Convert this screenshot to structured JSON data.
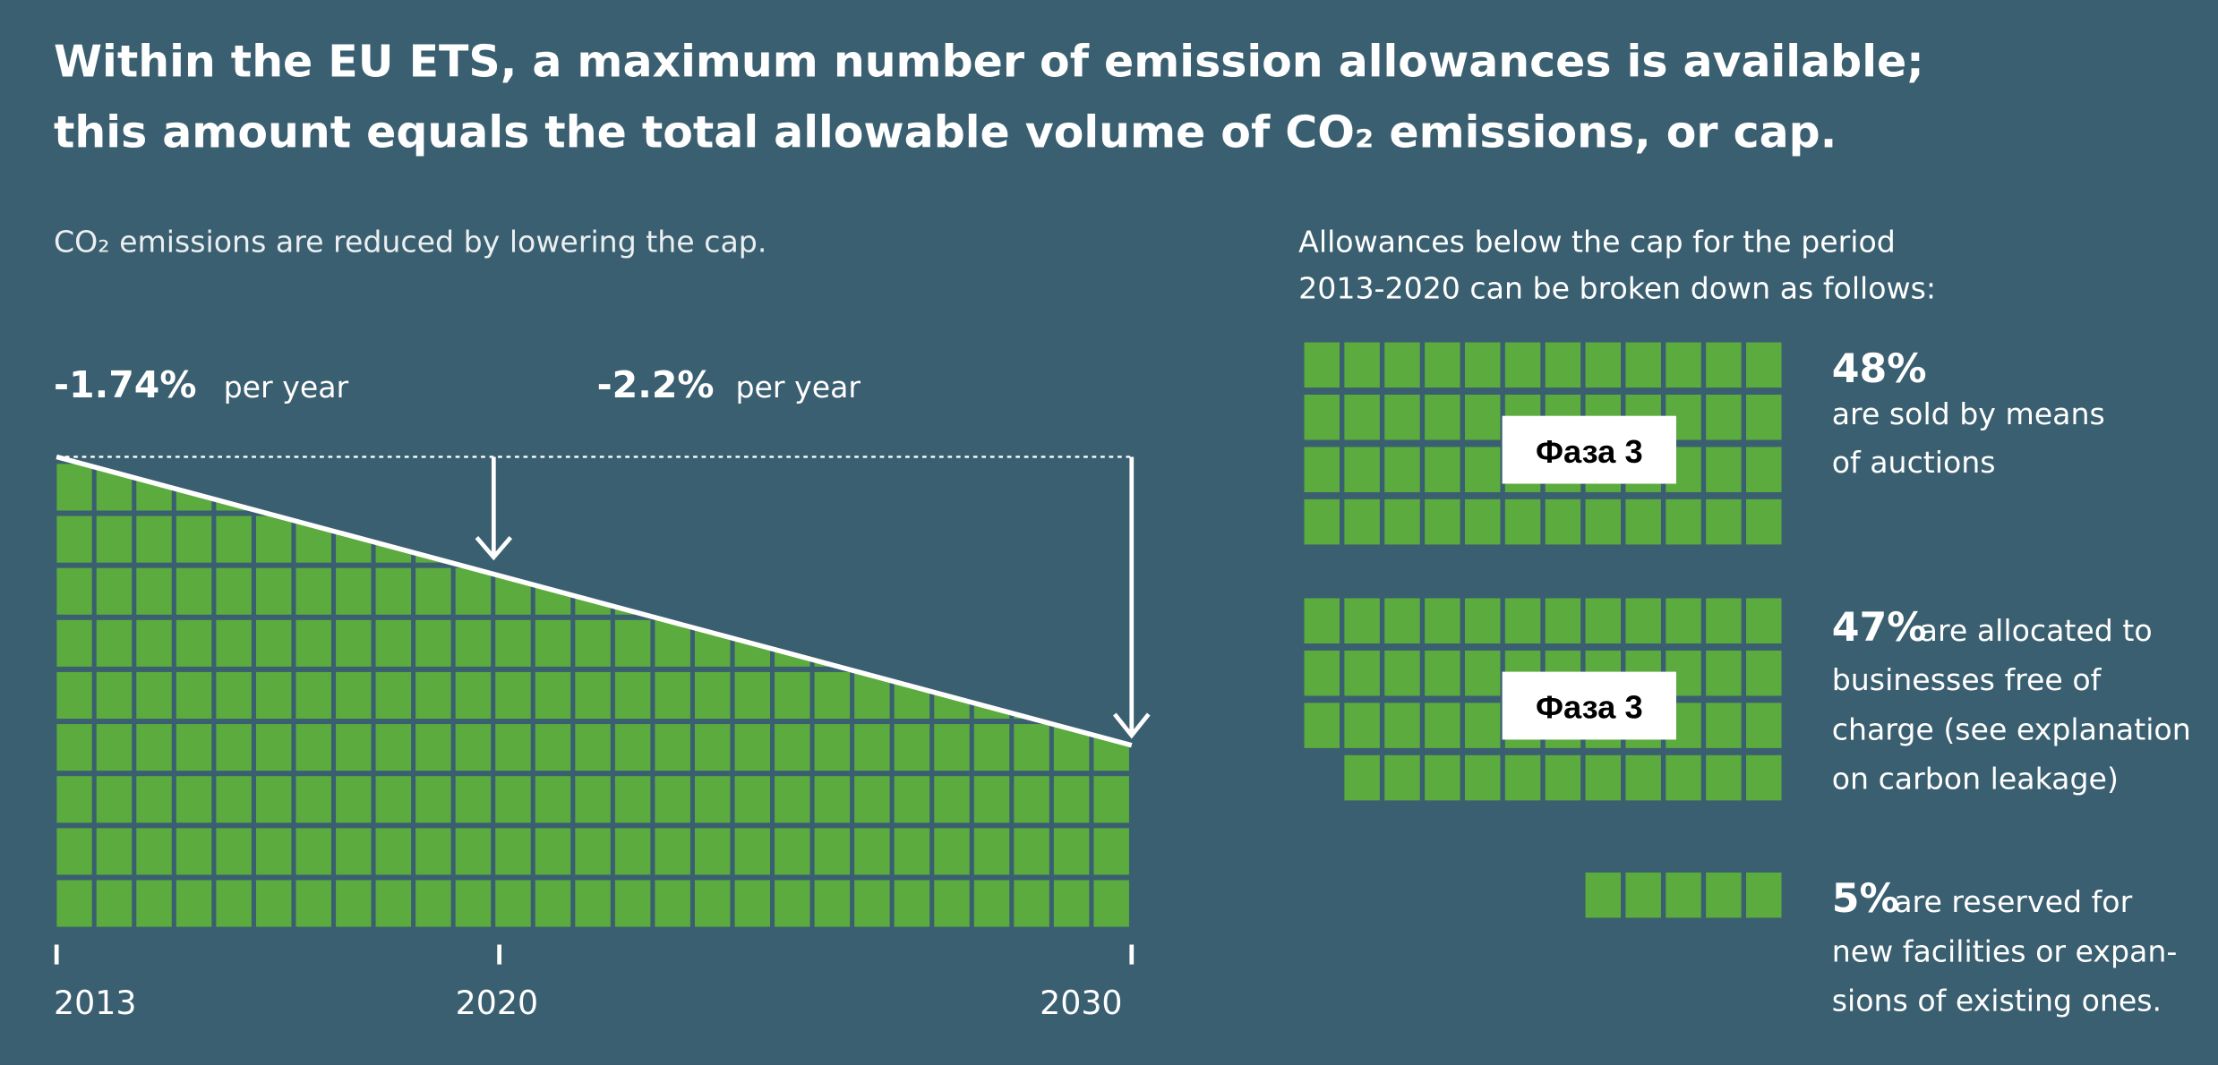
{
  "title_lines": [
    "Within the EU ETS, a maximum number of emission allowances is available;",
    "this amount equals the total allowable volume of CO₂ emissions, or cap."
  ],
  "left": {
    "caption": "CO₂ emissions are reduced by lowering the cap.",
    "rates": [
      {
        "value": "-1.74%",
        "unit": "per year"
      },
      {
        "value": "-2.2%",
        "unit": "per year"
      }
    ],
    "years": [
      "2013",
      "2020",
      "2030"
    ]
  },
  "right": {
    "caption_lines": [
      "Allowances below the cap for the period",
      "2013-2020 can be broken down as follows:"
    ],
    "groups": [
      {
        "percent": {
          "value": 48,
          "label": "48%"
        },
        "lines": [
          "are sold by means",
          "of auctions"
        ],
        "badge": "Фаза 3"
      },
      {
        "percent": {
          "value": 47,
          "label": "47%"
        },
        "lines": [
          "are allocated to",
          "businesses free of",
          "charge (see explanation",
          "on carbon leakage)"
        ],
        "badge": "Фаза 3"
      },
      {
        "percent": {
          "value": 5,
          "label": "5%"
        },
        "lines": [
          "are reserved for",
          "new facilities or expan-",
          "sions of existing ones."
        ]
      }
    ]
  }
}
